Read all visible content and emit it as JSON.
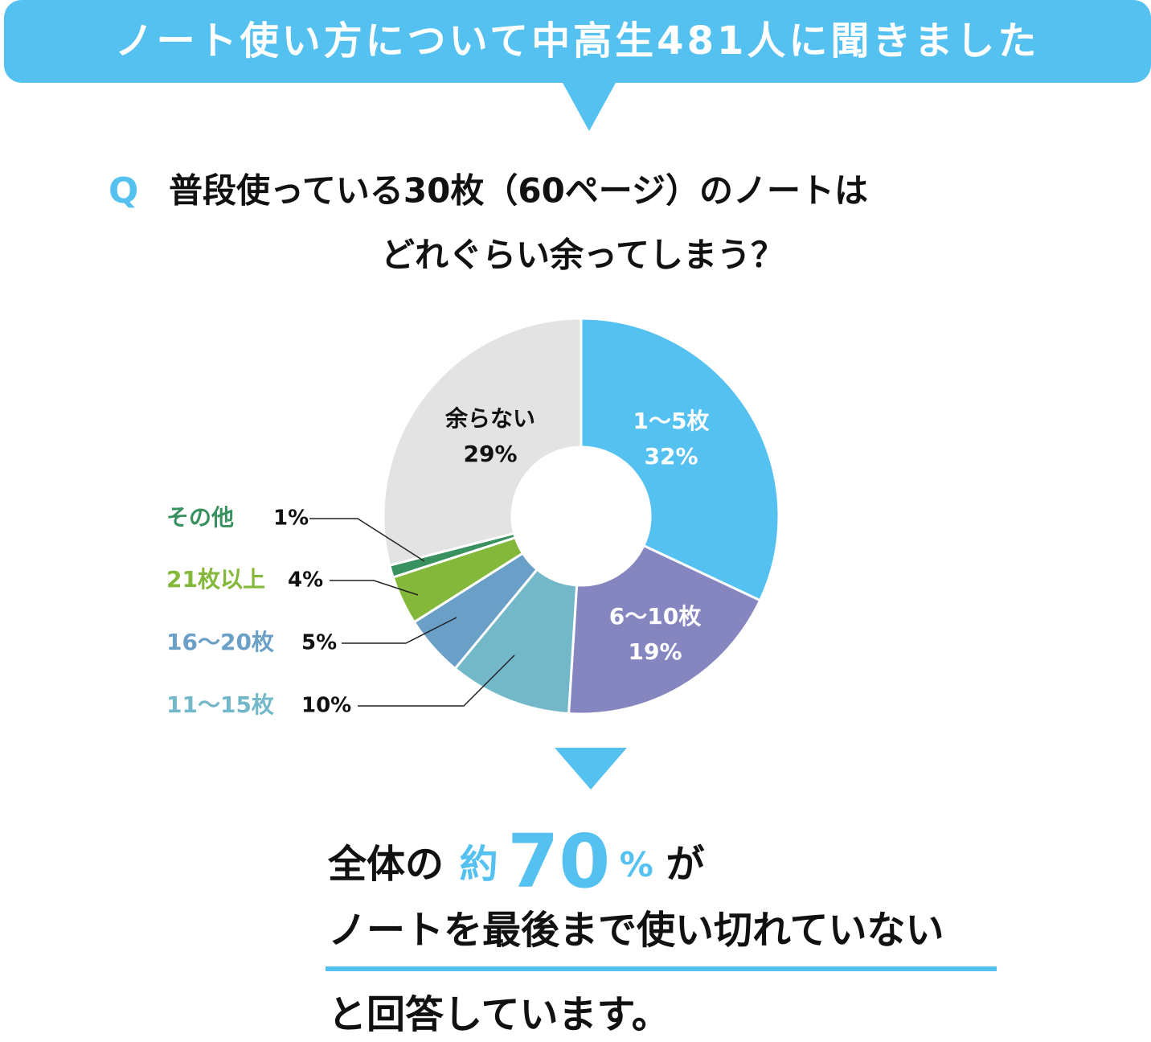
{
  "chart_data": {
    "type": "pie",
    "banner": "ノート使い方について中高生481人に聞きました",
    "question_mark": "Q",
    "title_lines": [
      "普段使っている30枚（60ページ）のノートは",
      "どれぐらい余ってしまう？"
    ],
    "categories": [
      "1〜5枚",
      "6〜10枚",
      "11〜15枚",
      "16〜20枚",
      "21枚以上",
      "その他",
      "余らない"
    ],
    "values": [
      32,
      19,
      10,
      5,
      4,
      1,
      29
    ],
    "value_labels": [
      "32%",
      "19%",
      "10%",
      "5%",
      "4%",
      "1%",
      "29%"
    ],
    "colors": [
      "#55c1f0",
      "#8585c0",
      "#72b8c8",
      "#6aa0c8",
      "#84b83a",
      "#3a9160",
      "#e3e3e3"
    ],
    "conclusion": {
      "line1": [
        "全体の",
        "約",
        "70",
        "%",
        "が"
      ],
      "line2": "ノートを最後まで使い切れていない",
      "line3": "と回答しています。"
    }
  }
}
